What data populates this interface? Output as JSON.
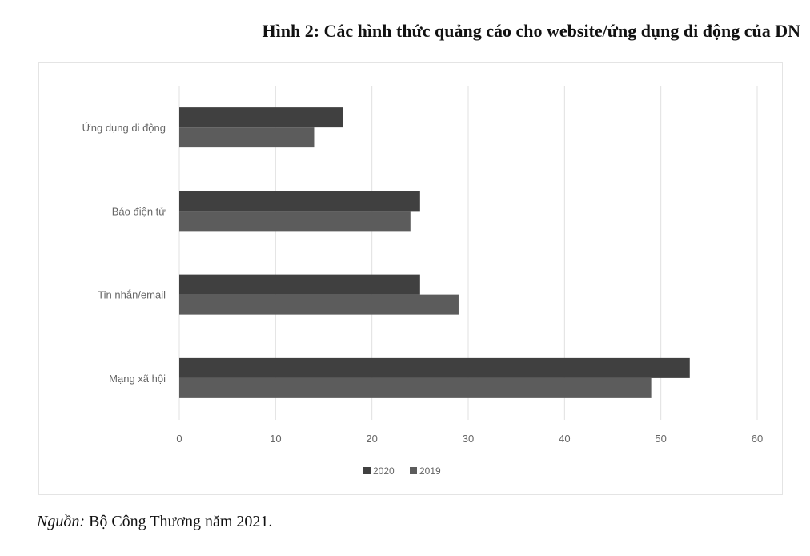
{
  "title": "Hình 2: Các hình thức quảng cáo cho website/ứng dụng di động của DN",
  "source": {
    "label": "Nguồn:",
    "text": " Bộ Công Thương năm 2021."
  },
  "chart_data": {
    "type": "bar",
    "orientation": "horizontal",
    "categories": [
      "Ứng dụng di động",
      "Báo điện tử",
      "Tin nhắn/email",
      "Mạng xã hội"
    ],
    "series": [
      {
        "name": "2020",
        "values": [
          17,
          25,
          25,
          53
        ],
        "color": "#404040"
      },
      {
        "name": "2019",
        "values": [
          14,
          24,
          29,
          49
        ],
        "color": "#5c5c5c"
      }
    ],
    "xlim": [
      0,
      60
    ],
    "xticks": [
      0,
      10,
      20,
      30,
      40,
      50,
      60
    ],
    "grid": true,
    "legend": "bottom"
  }
}
